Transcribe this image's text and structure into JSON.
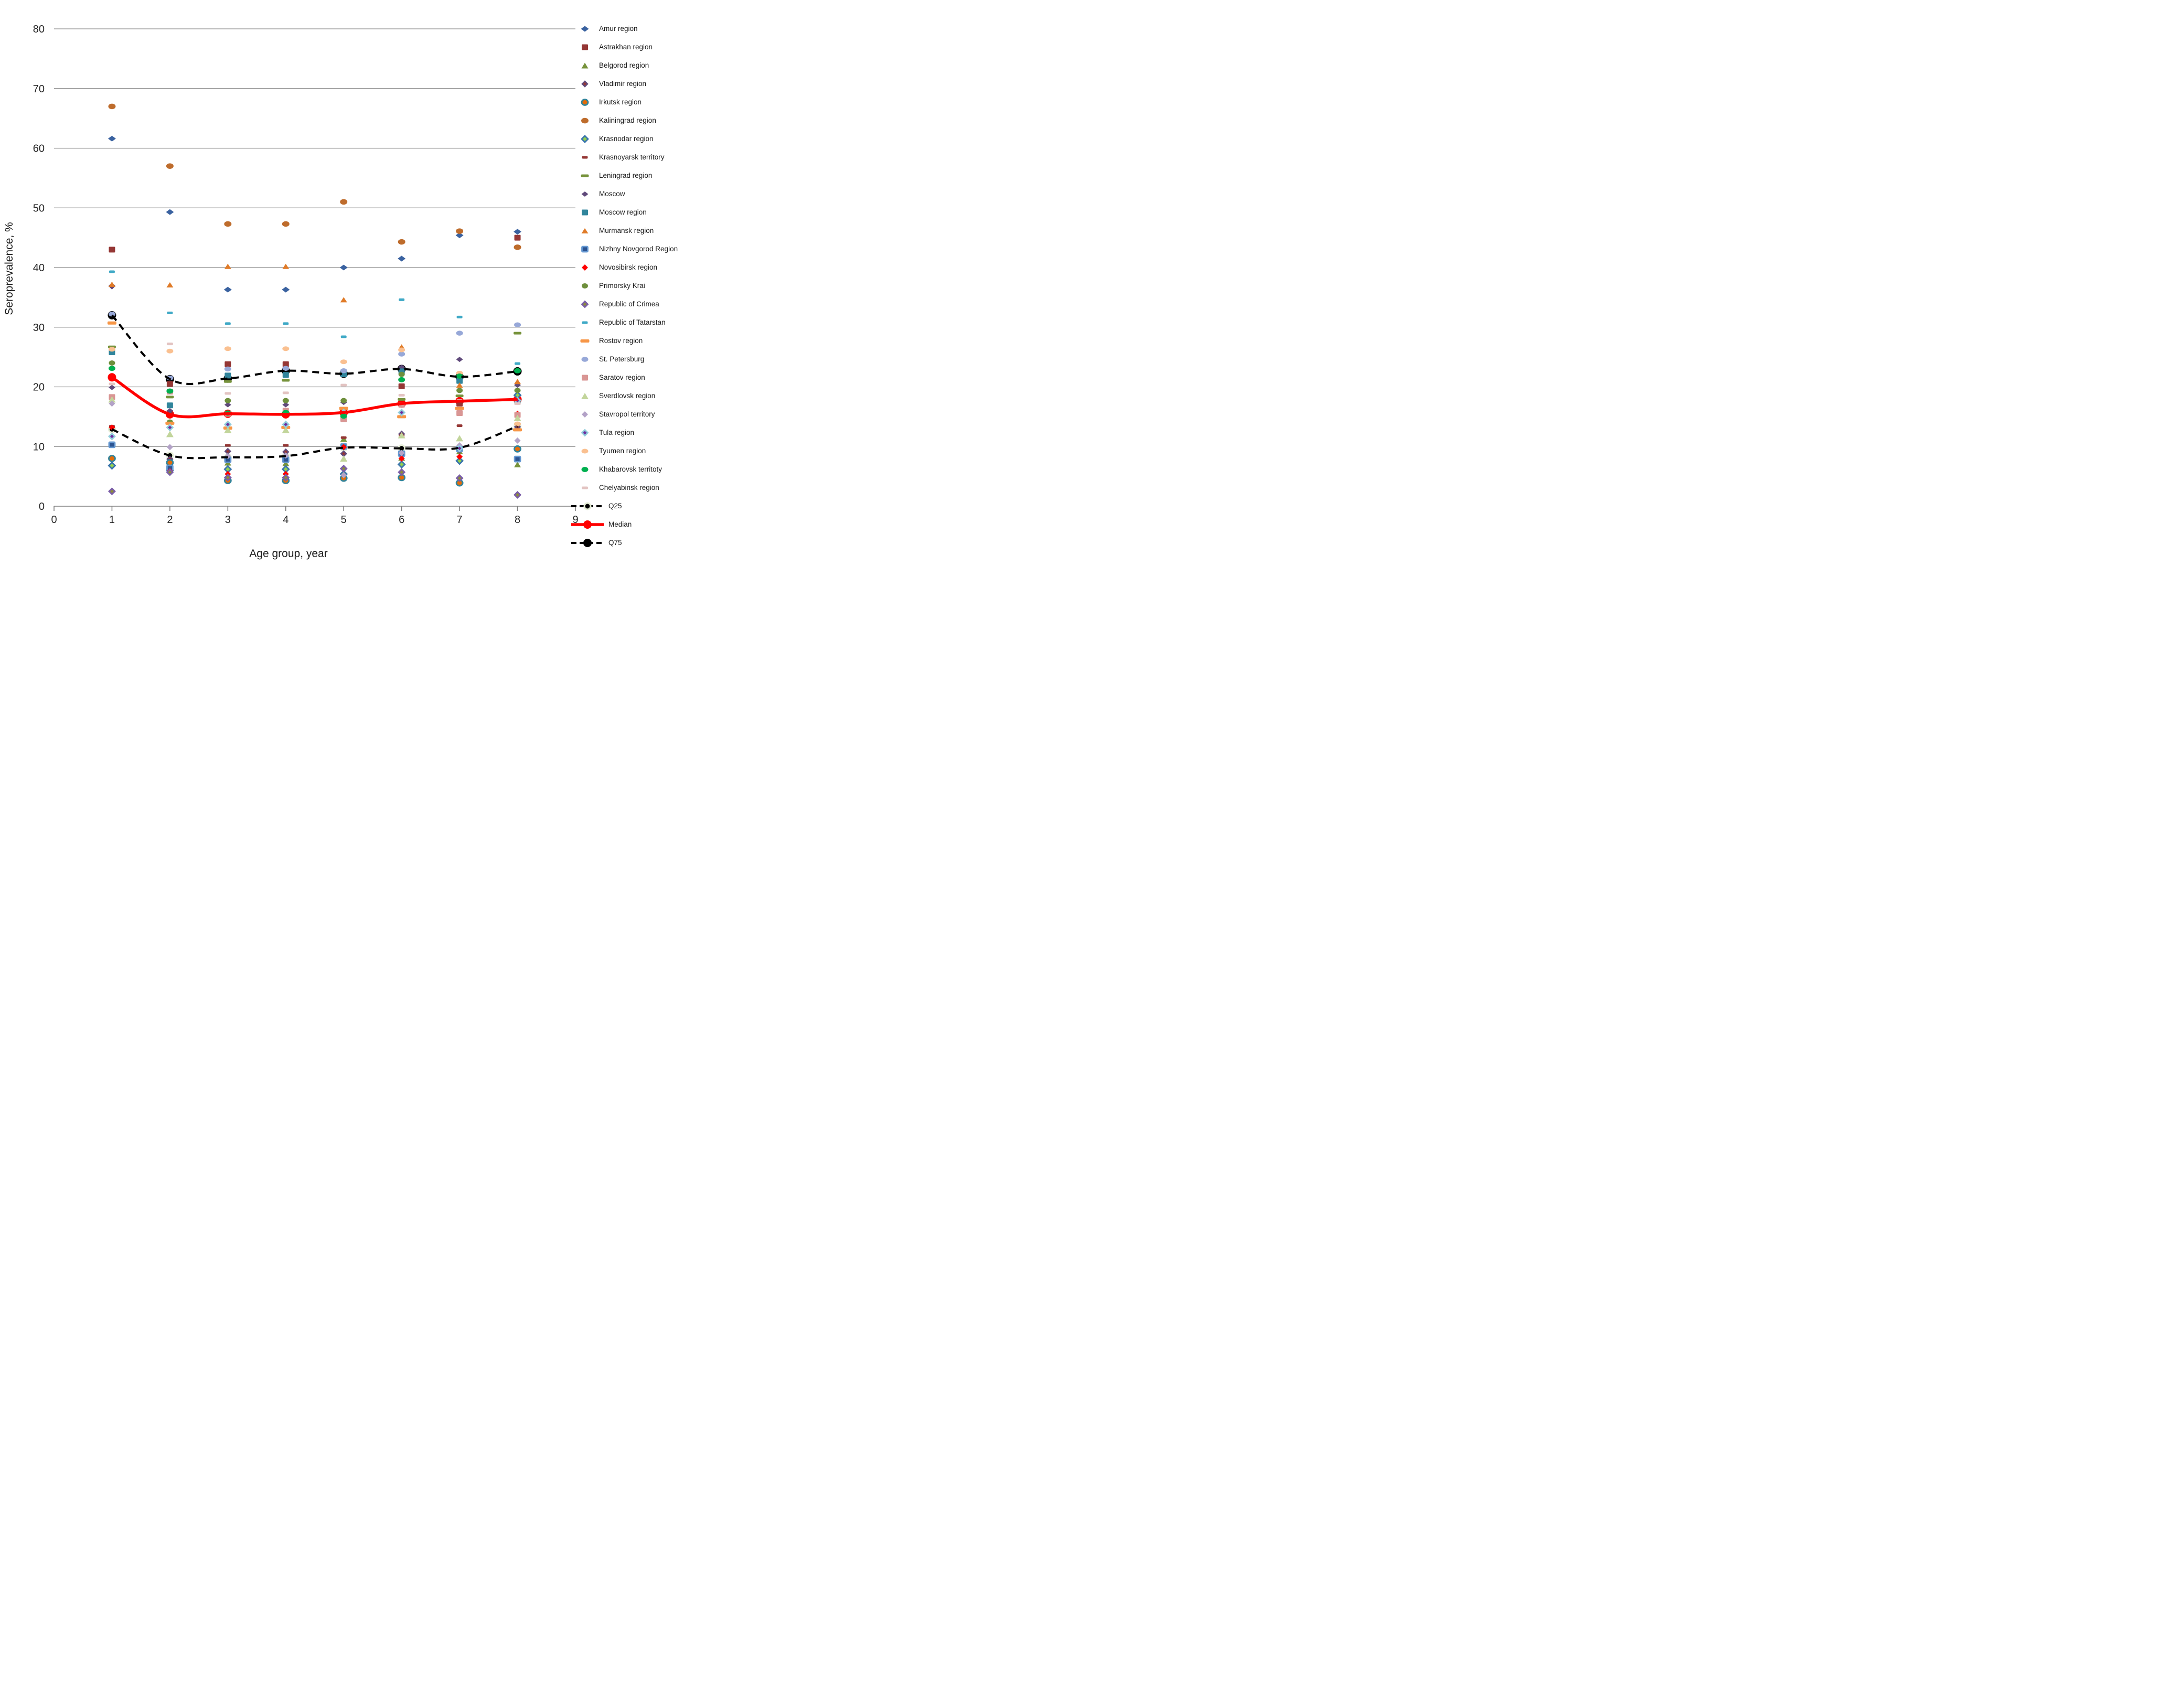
{
  "chart_data": {
    "type": "scatter",
    "title": "",
    "xlabel": "Age group, year",
    "ylabel": "Seroprevalence, %",
    "xlim": [
      0,
      9
    ],
    "ylim": [
      0,
      80
    ],
    "x_ticks": [
      0,
      1,
      2,
      3,
      4,
      5,
      6,
      7,
      8,
      9
    ],
    "y_ticks": [
      0,
      10,
      20,
      30,
      40,
      50,
      60,
      70,
      80
    ],
    "grid": "horizontal",
    "legend_position": "right",
    "x": [
      1,
      2,
      3,
      4,
      5,
      6,
      7,
      8
    ],
    "series": [
      {
        "name": "Amur region",
        "marker": {
          "shape": "diamond",
          "fill": "#3A62A0",
          "w": 15,
          "h": 11
        },
        "values": [
          61.6,
          49.3,
          36.3,
          36.3,
          40.0,
          41.5,
          45.4,
          46.0
        ]
      },
      {
        "name": "Astrakhan region",
        "marker": {
          "shape": "square",
          "fill": "#953735",
          "w": 12,
          "h": 11
        },
        "values": [
          43.0,
          20.5,
          23.8,
          23.8,
          14.6,
          20.1,
          17.2,
          45.0
        ]
      },
      {
        "name": "Belgorod region",
        "marker": {
          "shape": "triangle",
          "fill": "#77933C",
          "w": 13,
          "h": 11
        },
        "values": [
          10.4,
          7.8,
          7.3,
          7.2,
          11.3,
          8.1,
          9.2,
          7.0
        ]
      },
      {
        "name": "Vladimir region",
        "marker": {
          "shape": "diamond",
          "fill": "#953735",
          "stroke": "#604A7B",
          "sw": 2.5,
          "w": 10,
          "h": 10
        },
        "values": [
          36.9,
          7.9,
          9.2,
          9.1,
          8.8,
          12.1,
          9.4,
          13.3
        ]
      },
      {
        "name": "Irkutsk region",
        "marker": {
          "shape": "circle",
          "fill": "#E36C0A",
          "stroke": "#31849B",
          "sw": 2.8,
          "w": 12,
          "h": 11
        },
        "values": [
          8.0,
          7.3,
          4.3,
          4.3,
          4.7,
          4.8,
          3.9,
          9.6
        ]
      },
      {
        "name": "Kaliningrad region",
        "marker": {
          "shape": "circle",
          "fill": "#BE6C2C",
          "w": 14,
          "h": 10.5
        },
        "values": [
          67.0,
          57.0,
          47.3,
          47.3,
          51.0,
          44.3,
          46.1,
          43.4
        ]
      },
      {
        "name": "Krasnodar region",
        "marker": {
          "shape": "diamond",
          "fill": "#92D050",
          "stroke": "#3A75AD",
          "sw": 2.8,
          "w": 12,
          "h": 12
        },
        "values": [
          6.8,
          6.0,
          6.2,
          6.2,
          5.4,
          7.0,
          7.6,
          18.6
        ]
      },
      {
        "name": "Krasnoyarsk territory",
        "marker": {
          "shape": "dash",
          "fill": "#953735",
          "w": 11,
          "h": 5
        },
        "values": [
          13.4,
          15.6,
          10.2,
          10.2,
          11.5,
          11.8,
          13.5,
          13.8
        ]
      },
      {
        "name": "Leningrad region",
        "marker": {
          "shape": "dash",
          "fill": "#77933C",
          "w": 15,
          "h": 5
        },
        "values": [
          26.7,
          18.3,
          20.9,
          21.1,
          22.3,
          17.9,
          18.5,
          29.0
        ]
      },
      {
        "name": "Moscow",
        "marker": {
          "shape": "diamond",
          "fill": "#604A7B",
          "w": 13,
          "h": 10
        },
        "values": [
          19.9,
          16.0,
          17.0,
          17.0,
          17.4,
          23.3,
          24.6,
          20.3
        ]
      },
      {
        "name": "Moscow region",
        "marker": {
          "shape": "square",
          "fill": "#31859C",
          "w": 12,
          "h": 11
        },
        "values": [
          25.8,
          16.9,
          21.9,
          22.0,
          22.1,
          22.6,
          21.0,
          17.5
        ]
      },
      {
        "name": "Murmansk region",
        "marker": {
          "shape": "triangle",
          "fill": "#E07B28",
          "w": 13,
          "h": 10
        },
        "values": [
          37.2,
          37.1,
          40.2,
          40.2,
          34.6,
          26.7,
          20.3,
          20.9
        ]
      },
      {
        "name": "Nizhny Novgorod Region",
        "marker": {
          "shape": "square",
          "fill": "#2C5492",
          "stroke": "#6699D2",
          "sw": 2.8,
          "w": 11,
          "h": 10
        },
        "values": [
          10.3,
          6.4,
          7.8,
          7.8,
          10.0,
          8.8,
          9.6,
          7.9
        ]
      },
      {
        "name": "Novosibirsk region",
        "marker": {
          "shape": "diamond",
          "fill": "#FF0000",
          "w": 12,
          "h": 12
        },
        "values": [
          13.2,
          5.9,
          5.4,
          5.4,
          9.9,
          8.0,
          8.3,
          15.5
        ]
      },
      {
        "name": "Primorsky Krai",
        "marker": {
          "shape": "circle",
          "fill": "#6E8F3C",
          "w": 12,
          "h": 10
        },
        "values": [
          24.0,
          14.1,
          17.7,
          17.7,
          17.7,
          22.1,
          19.4,
          19.4
        ]
      },
      {
        "name": "Republic of Crimea",
        "marker": {
          "shape": "diamond",
          "fill": "#8B8B3E",
          "stroke": "#7A5DA8",
          "sw": 2.8,
          "w": 11,
          "h": 11
        },
        "values": [
          2.5,
          5.7,
          4.8,
          4.8,
          6.3,
          5.7,
          4.7,
          1.9
        ]
      },
      {
        "name": "Republic of Tatarstan",
        "marker": {
          "shape": "dash",
          "fill": "#3FA9C6",
          "w": 11,
          "h": 5
        },
        "values": [
          39.3,
          32.4,
          30.6,
          30.6,
          28.4,
          34.6,
          31.7,
          23.9
        ]
      },
      {
        "name": "Rostov region",
        "marker": {
          "shape": "dash",
          "fill": "#F79646",
          "w": 17,
          "h": 6
        },
        "values": [
          30.7,
          13.9,
          13.1,
          13.2,
          16.4,
          15.0,
          16.4,
          12.8
        ]
      },
      {
        "name": "St. Petersburg",
        "marker": {
          "shape": "circle",
          "fill": "#97A8D8",
          "w": 13,
          "h": 9.5
        },
        "values": [
          32.2,
          21.5,
          23.0,
          23.1,
          22.7,
          25.5,
          29.0,
          30.4
        ]
      },
      {
        "name": "Saratov region",
        "marker": {
          "shape": "square",
          "fill": "#D99694",
          "w": 12,
          "h": 11
        },
        "values": [
          18.3,
          19.2,
          15.5,
          16.0,
          14.6,
          17.0,
          15.6,
          15.3
        ]
      },
      {
        "name": "Sverdlovsk region",
        "marker": {
          "shape": "triangle",
          "fill": "#C2D59B",
          "w": 14,
          "h": 12
        },
        "values": [
          17.9,
          12.1,
          12.8,
          12.8,
          8.0,
          11.9,
          11.4,
          14.8
        ]
      },
      {
        "name": "Stavropol territory",
        "marker": {
          "shape": "diamond",
          "fill": "#B3A2C7",
          "w": 12,
          "h": 12
        },
        "values": [
          17.2,
          9.9,
          8.4,
          8.5,
          5.2,
          8.9,
          10.2,
          11.0
        ]
      },
      {
        "name": "Tula region",
        "marker": {
          "shape": "diamond",
          "fill": "#6E2FA0",
          "stroke": "#92CDDC",
          "sw": 2.8,
          "w": 11,
          "h": 11
        },
        "values": [
          11.7,
          13.2,
          13.7,
          13.7,
          15.7,
          15.7,
          9.7,
          17.7
        ]
      },
      {
        "name": "Tyumen region",
        "marker": {
          "shape": "circle",
          "fill": "#FAC090",
          "w": 13,
          "h": 9
        },
        "values": [
          26.3,
          26.0,
          26.4,
          26.4,
          24.2,
          26.2,
          22.3,
          13.8
        ]
      },
      {
        "name": "Khabarovsk territoty",
        "marker": {
          "shape": "circle",
          "fill": "#00B050",
          "w": 13,
          "h": 10
        },
        "values": [
          23.1,
          19.3,
          15.6,
          15.7,
          15.1,
          21.2,
          21.8,
          22.7
        ]
      },
      {
        "name": "Chelyabinsk region",
        "marker": {
          "shape": "dash",
          "fill": "#E3C4C2",
          "w": 12,
          "h": 5
        },
        "values": [
          20.5,
          27.2,
          18.9,
          19.0,
          20.3,
          18.6,
          17.7,
          17.2
        ]
      }
    ],
    "stat_lines": [
      {
        "name": "Q25",
        "color": "#000000",
        "style": "dashed",
        "width": 4,
        "marker": {
          "shape": "circle",
          "fill": "#000000",
          "r": 4.5,
          "ring": "#E4ECD5",
          "ringR": 7.5
        },
        "values": [
          12.9,
          8.5,
          8.2,
          8.4,
          9.8,
          9.7,
          9.8,
          13.4
        ]
      },
      {
        "name": "Median",
        "color": "#FF0000",
        "style": "solid",
        "width": 5.5,
        "marker": {
          "shape": "circle",
          "fill": "#FF0000",
          "r": 8
        },
        "values": [
          21.6,
          15.4,
          15.5,
          15.4,
          15.7,
          17.2,
          17.6,
          17.9
        ]
      },
      {
        "name": "Q75",
        "color": "#000000",
        "style": "dashed",
        "width": 4,
        "marker": {
          "shape": "circle",
          "fill": "#000000",
          "r": 8
        },
        "values": [
          32.0,
          21.3,
          21.4,
          22.7,
          22.2,
          23.0,
          21.7,
          22.6
        ]
      }
    ]
  }
}
